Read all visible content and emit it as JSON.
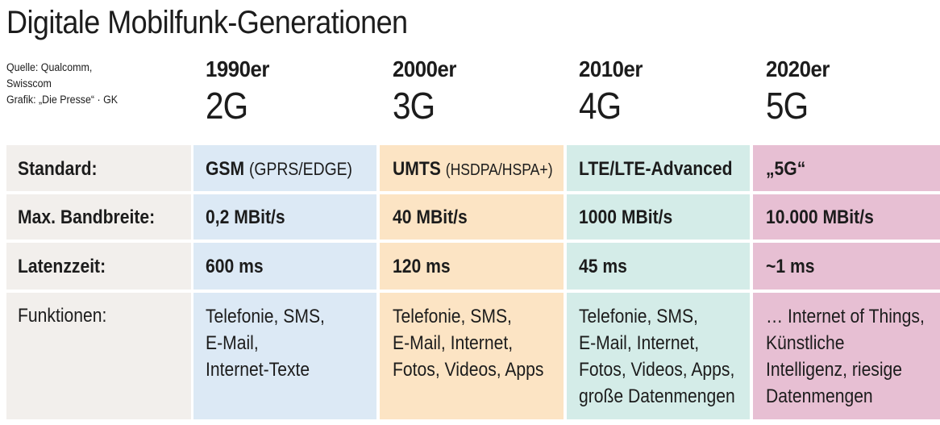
{
  "title": "Digitale Mobilfunk-Generationen",
  "source_lines": [
    "Quelle: Qualcomm,",
    "Swisscom",
    "Grafik: „Die Presse“ · GK"
  ],
  "colors": {
    "label_col": "#f2efec",
    "col_2g": "#dce9f5",
    "col_3g": "#fce4c4",
    "col_4g": "#d4ece8",
    "col_5g": "#e7bfd3"
  },
  "columns": [
    {
      "decade": "1990er",
      "generation": "2G"
    },
    {
      "decade": "2000er",
      "generation": "3G"
    },
    {
      "decade": "2010er",
      "generation": "4G"
    },
    {
      "decade": "2020er",
      "generation": "5G"
    }
  ],
  "rows": {
    "standard": {
      "label": "Standard:",
      "values": [
        {
          "main": "GSM",
          "extra": "(GPRS/EDGE)"
        },
        {
          "main": "UMTS",
          "extra": "(HSDPA/HSPA+)"
        },
        {
          "main": "LTE/LTE-Advanced",
          "extra": ""
        },
        {
          "main": "„5G“",
          "extra": ""
        }
      ]
    },
    "bandwidth": {
      "label": "Max. Bandbreite:",
      "values": [
        "0,2 MBit/s",
        "40 MBit/s",
        "1000 MBit/s",
        "10.000 MBit/s"
      ]
    },
    "latency": {
      "label": "Latenzzeit:",
      "values": [
        "600 ms",
        "120 ms",
        "45 ms",
        "~1 ms"
      ]
    },
    "functions": {
      "label": "Funktionen:",
      "values": [
        [
          "Telefonie, SMS,",
          "E-Mail,",
          "Internet-Texte"
        ],
        [
          "Telefonie, SMS,",
          "E-Mail, Internet,",
          "Fotos, Videos, Apps"
        ],
        [
          "Telefonie, SMS,",
          "E-Mail, Internet,",
          "Fotos, Videos, Apps,",
          "große Datenmengen"
        ],
        [
          "… Internet of Things,",
          "Künstliche",
          "Intelligenz, riesige",
          "Datenmengen"
        ]
      ]
    }
  }
}
